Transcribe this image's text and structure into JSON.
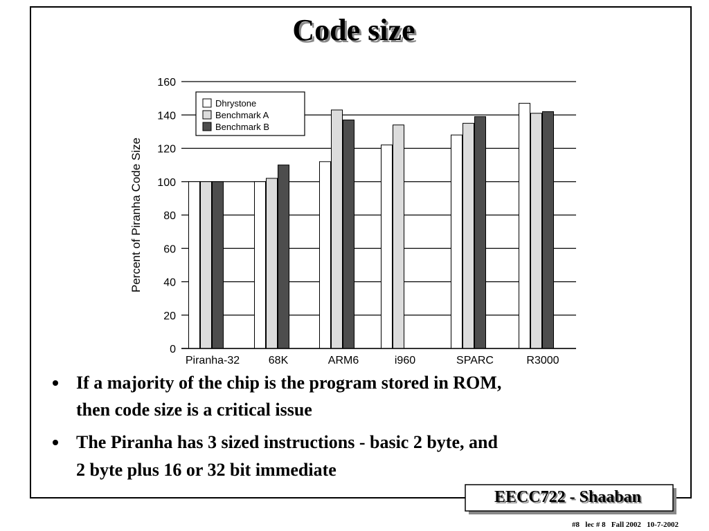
{
  "slide_title": "Code size",
  "chart_data": {
    "type": "bar",
    "y_label": "Percent of Piranha Code Size",
    "categories": [
      "Piranha-32",
      "68K",
      "ARM6",
      "i960",
      "SPARC",
      "R3000"
    ],
    "series": [
      {
        "name": "Dhrystone",
        "color": "#ffffff",
        "values": [
          100,
          100,
          112,
          122,
          128,
          147
        ]
      },
      {
        "name": "Benchmark A",
        "color": "#dcdcdc",
        "values": [
          100,
          102,
          143,
          134,
          135,
          141
        ]
      },
      {
        "name": "Benchmark B",
        "color": "#4d4d4d",
        "values": [
          100,
          110,
          137,
          null,
          139,
          142
        ]
      }
    ],
    "ylim": [
      0,
      160
    ],
    "yticks": [
      0,
      20,
      40,
      60,
      80,
      100,
      120,
      140,
      160
    ],
    "grid": true,
    "legend": "top-left"
  },
  "bullets": [
    [
      "If a majority of the chip is the program stored in ROM,",
      "then code size is a critical issue"
    ],
    [
      "The Piranha has 3 sized instructions - basic 2 byte, and",
      "2 byte plus 16 or 32 bit immediate"
    ]
  ],
  "footer": {
    "label": "EECC722 - Shaaban",
    "note": "#8   lec # 8   Fall 2002   10-7-2002"
  }
}
